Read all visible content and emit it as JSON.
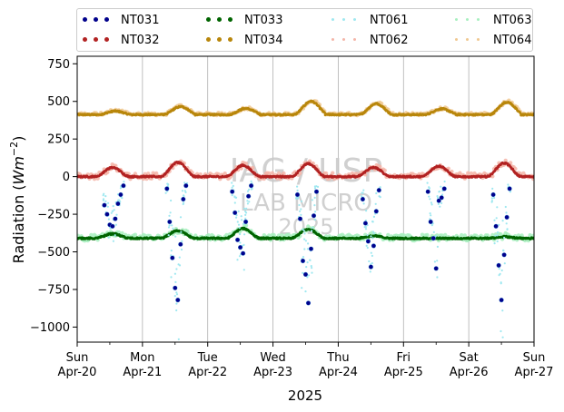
{
  "chart_data": {
    "type": "scatter",
    "ylabel": "Radiation ($Wm^{-2}$)",
    "xlabel": "2025",
    "ylim": [
      -1100,
      800
    ],
    "yticks": [
      -1000,
      -750,
      -500,
      -250,
      0,
      250,
      500,
      750
    ],
    "ytick_labels": [
      "−1000",
      "−750",
      "−500",
      "−250",
      "0",
      "250",
      "500",
      "750"
    ],
    "xlim": [
      "2025-04-20",
      "2025-04-27"
    ],
    "xticks": [
      {
        "date": "2025-04-20",
        "day": "Sun",
        "label": "Apr-20"
      },
      {
        "date": "2025-04-21",
        "day": "Mon",
        "label": "Apr-21"
      },
      {
        "date": "2025-04-22",
        "day": "Tue",
        "label": "Apr-22"
      },
      {
        "date": "2025-04-23",
        "day": "Wed",
        "label": "Apr-23"
      },
      {
        "date": "2025-04-24",
        "day": "Thu",
        "label": "Apr-24"
      },
      {
        "date": "2025-04-25",
        "day": "Fri",
        "label": "Apr-25"
      },
      {
        "date": "2025-04-26",
        "day": "Sat",
        "label": "Apr-26"
      },
      {
        "date": "2025-04-27",
        "day": "Sun",
        "label": "Apr-27"
      }
    ],
    "grid": "vertical",
    "legend_position": "top, above plot, 4 columns",
    "watermark": [
      "IAG / USP",
      "LAB MICRO",
      "2025"
    ],
    "series": [
      {
        "name": "NT031",
        "color": "#00008b",
        "style": "dots",
        "points": [
          [
            "2025-04-20 10:00",
            -190
          ],
          [
            "2025-04-20 11:00",
            -250
          ],
          [
            "2025-04-20 12:00",
            -320
          ],
          [
            "2025-04-20 13:00",
            -330
          ],
          [
            "2025-04-20 14:00",
            -280
          ],
          [
            "2025-04-20 15:00",
            -180
          ],
          [
            "2025-04-20 16:00",
            -120
          ],
          [
            "2025-04-20 17:00",
            -60
          ],
          [
            "2025-04-21 09:00",
            -80
          ],
          [
            "2025-04-21 10:00",
            -300
          ],
          [
            "2025-04-21 11:00",
            -540
          ],
          [
            "2025-04-21 12:00",
            -740
          ],
          [
            "2025-04-21 13:00",
            -820
          ],
          [
            "2025-04-21 14:00",
            -450
          ],
          [
            "2025-04-21 15:00",
            -150
          ],
          [
            "2025-04-21 16:00",
            -60
          ],
          [
            "2025-04-22 09:00",
            -100
          ],
          [
            "2025-04-22 10:00",
            -240
          ],
          [
            "2025-04-22 11:00",
            -420
          ],
          [
            "2025-04-22 12:00",
            -470
          ],
          [
            "2025-04-22 13:00",
            -510
          ],
          [
            "2025-04-22 14:00",
            -300
          ],
          [
            "2025-04-22 15:00",
            -130
          ],
          [
            "2025-04-22 16:00",
            -60
          ],
          [
            "2025-04-23 09:00",
            -120
          ],
          [
            "2025-04-23 10:00",
            -280
          ],
          [
            "2025-04-23 11:00",
            -560
          ],
          [
            "2025-04-23 12:00",
            -650
          ],
          [
            "2025-04-23 13:00",
            -840
          ],
          [
            "2025-04-23 14:00",
            -480
          ],
          [
            "2025-04-23 15:00",
            -260
          ],
          [
            "2025-04-23 16:00",
            -100
          ],
          [
            "2025-04-24 09:00",
            -150
          ],
          [
            "2025-04-24 10:00",
            -310
          ],
          [
            "2025-04-24 11:00",
            -430
          ],
          [
            "2025-04-24 12:00",
            -600
          ],
          [
            "2025-04-24 13:00",
            -460
          ],
          [
            "2025-04-24 14:00",
            -230
          ],
          [
            "2025-04-24 15:00",
            -90
          ],
          [
            "2025-04-25 09:00",
            -100
          ],
          [
            "2025-04-25 10:00",
            -300
          ],
          [
            "2025-04-25 11:00",
            -410
          ],
          [
            "2025-04-25 12:00",
            -610
          ],
          [
            "2025-04-25 13:00",
            -160
          ],
          [
            "2025-04-25 14:00",
            -140
          ],
          [
            "2025-04-25 15:00",
            -80
          ],
          [
            "2025-04-26 09:00",
            -120
          ],
          [
            "2025-04-26 10:00",
            -330
          ],
          [
            "2025-04-26 11:00",
            -590
          ],
          [
            "2025-04-26 12:00",
            -820
          ],
          [
            "2025-04-26 13:00",
            -520
          ],
          [
            "2025-04-26 14:00",
            -270
          ],
          [
            "2025-04-26 15:00",
            -80
          ]
        ]
      },
      {
        "name": "NT032",
        "color": "#b22222",
        "style": "dots",
        "daily": {
          "night": 0,
          "peaks": [
            60,
            95,
            75,
            85,
            60,
            70,
            90
          ],
          "peak_hour": 13
        }
      },
      {
        "name": "NT033",
        "color": "#006400",
        "style": "dots",
        "daily": {
          "night": -410,
          "peaks": [
            -380,
            -360,
            -345,
            -350,
            -395,
            -410,
            -400
          ],
          "peak_hour": 13
        }
      },
      {
        "name": "NT034",
        "color": "#b8860b",
        "style": "dots",
        "daily": {
          "night": 412,
          "peaks": [
            435,
            465,
            452,
            500,
            485,
            450,
            495
          ],
          "peak_hour": 14
        }
      },
      {
        "name": "NT061",
        "color": "#9fe8f0",
        "style": "faint"
      },
      {
        "name": "NT062",
        "color": "#f4b5a8",
        "style": "faint"
      },
      {
        "name": "NT063",
        "color": "#a8f0c0",
        "style": "faint"
      },
      {
        "name": "NT064",
        "color": "#f0c890",
        "style": "faint"
      }
    ]
  }
}
